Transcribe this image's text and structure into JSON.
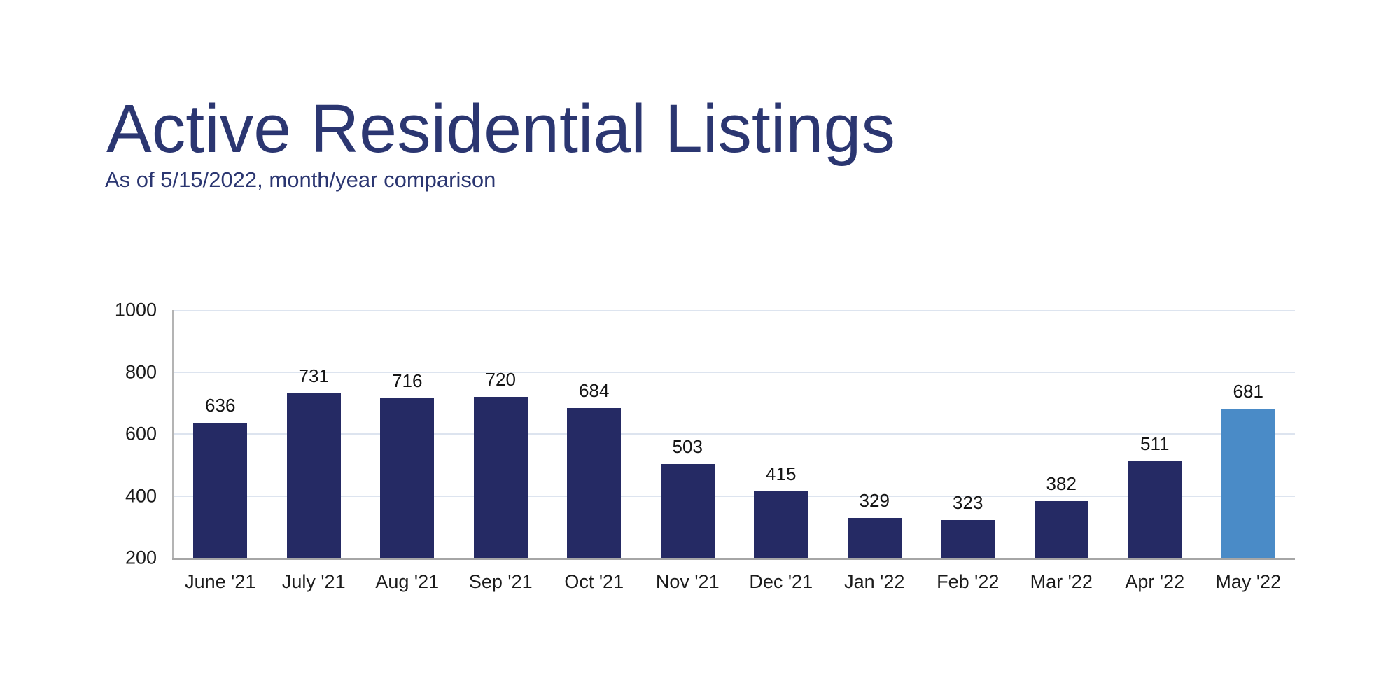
{
  "header": {
    "title": "Active Residential Listings",
    "subtitle": "As of 5/15/2022, month/year comparison"
  },
  "chart_data": {
    "type": "bar",
    "title": "Active Residential Listings",
    "subtitle": "As of 5/15/2022, month/year comparison",
    "categories": [
      "June '21",
      "July '21",
      "Aug '21",
      "Sep '21",
      "Oct '21",
      "Nov '21",
      "Dec '21",
      "Jan '22",
      "Feb '22",
      "Mar '22",
      "Apr '22",
      "May '22"
    ],
    "values": [
      636,
      731,
      716,
      720,
      684,
      503,
      415,
      329,
      323,
      382,
      511,
      681
    ],
    "xlabel": "",
    "ylabel": "",
    "ylim": [
      200,
      1000
    ],
    "yticks": [
      200,
      400,
      600,
      800,
      1000
    ],
    "grid": true,
    "legend": false,
    "highlight_index": 11,
    "colors": {
      "bar": "#252a64",
      "highlight_bar": "#4a8bc7",
      "title_text": "#2b3671",
      "value_label_text": "#141414",
      "tick_label_text": "#1b1b1b",
      "gridline": "#dde4ef",
      "left_axis_line": "#b4b4b4",
      "bottom_axis_line": "#a6a6a6"
    }
  }
}
